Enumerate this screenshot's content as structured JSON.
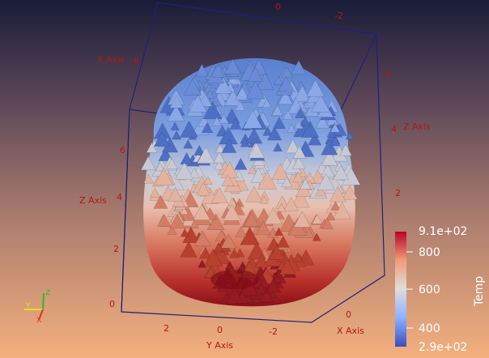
{
  "scene": {
    "axes": {
      "x_axis_label": "X Axis",
      "y_axis_label": "Y Axis",
      "z_axis_label": "Z Axis",
      "left_z_ticks": [
        "0",
        "2",
        "4",
        "6"
      ],
      "bottom_y_ticks": [
        "2",
        "0",
        "-2"
      ],
      "right_x_ticks": [
        "0"
      ],
      "right_z_ticks": [
        "2",
        "4"
      ],
      "top_ticks": [
        "0",
        "-2"
      ],
      "left_y_ticks": [
        "6"
      ],
      "right_top_ticks": [
        "6"
      ]
    },
    "colorbar": {
      "title": "Temp",
      "max_label": "9.1e+02",
      "min_label": "2.9e+02",
      "ticks": [
        "800",
        "600",
        "400"
      ],
      "colors": [
        "#3b4cc0",
        "#8db0fe",
        "#dddddd",
        "#f49a7b",
        "#b40426"
      ]
    },
    "orientation_widget": {
      "labels": [
        "Z",
        "Y",
        "X"
      ],
      "colors": {
        "x": "#e03020",
        "y": "#e8e020",
        "z": "#20c020"
      }
    }
  }
}
